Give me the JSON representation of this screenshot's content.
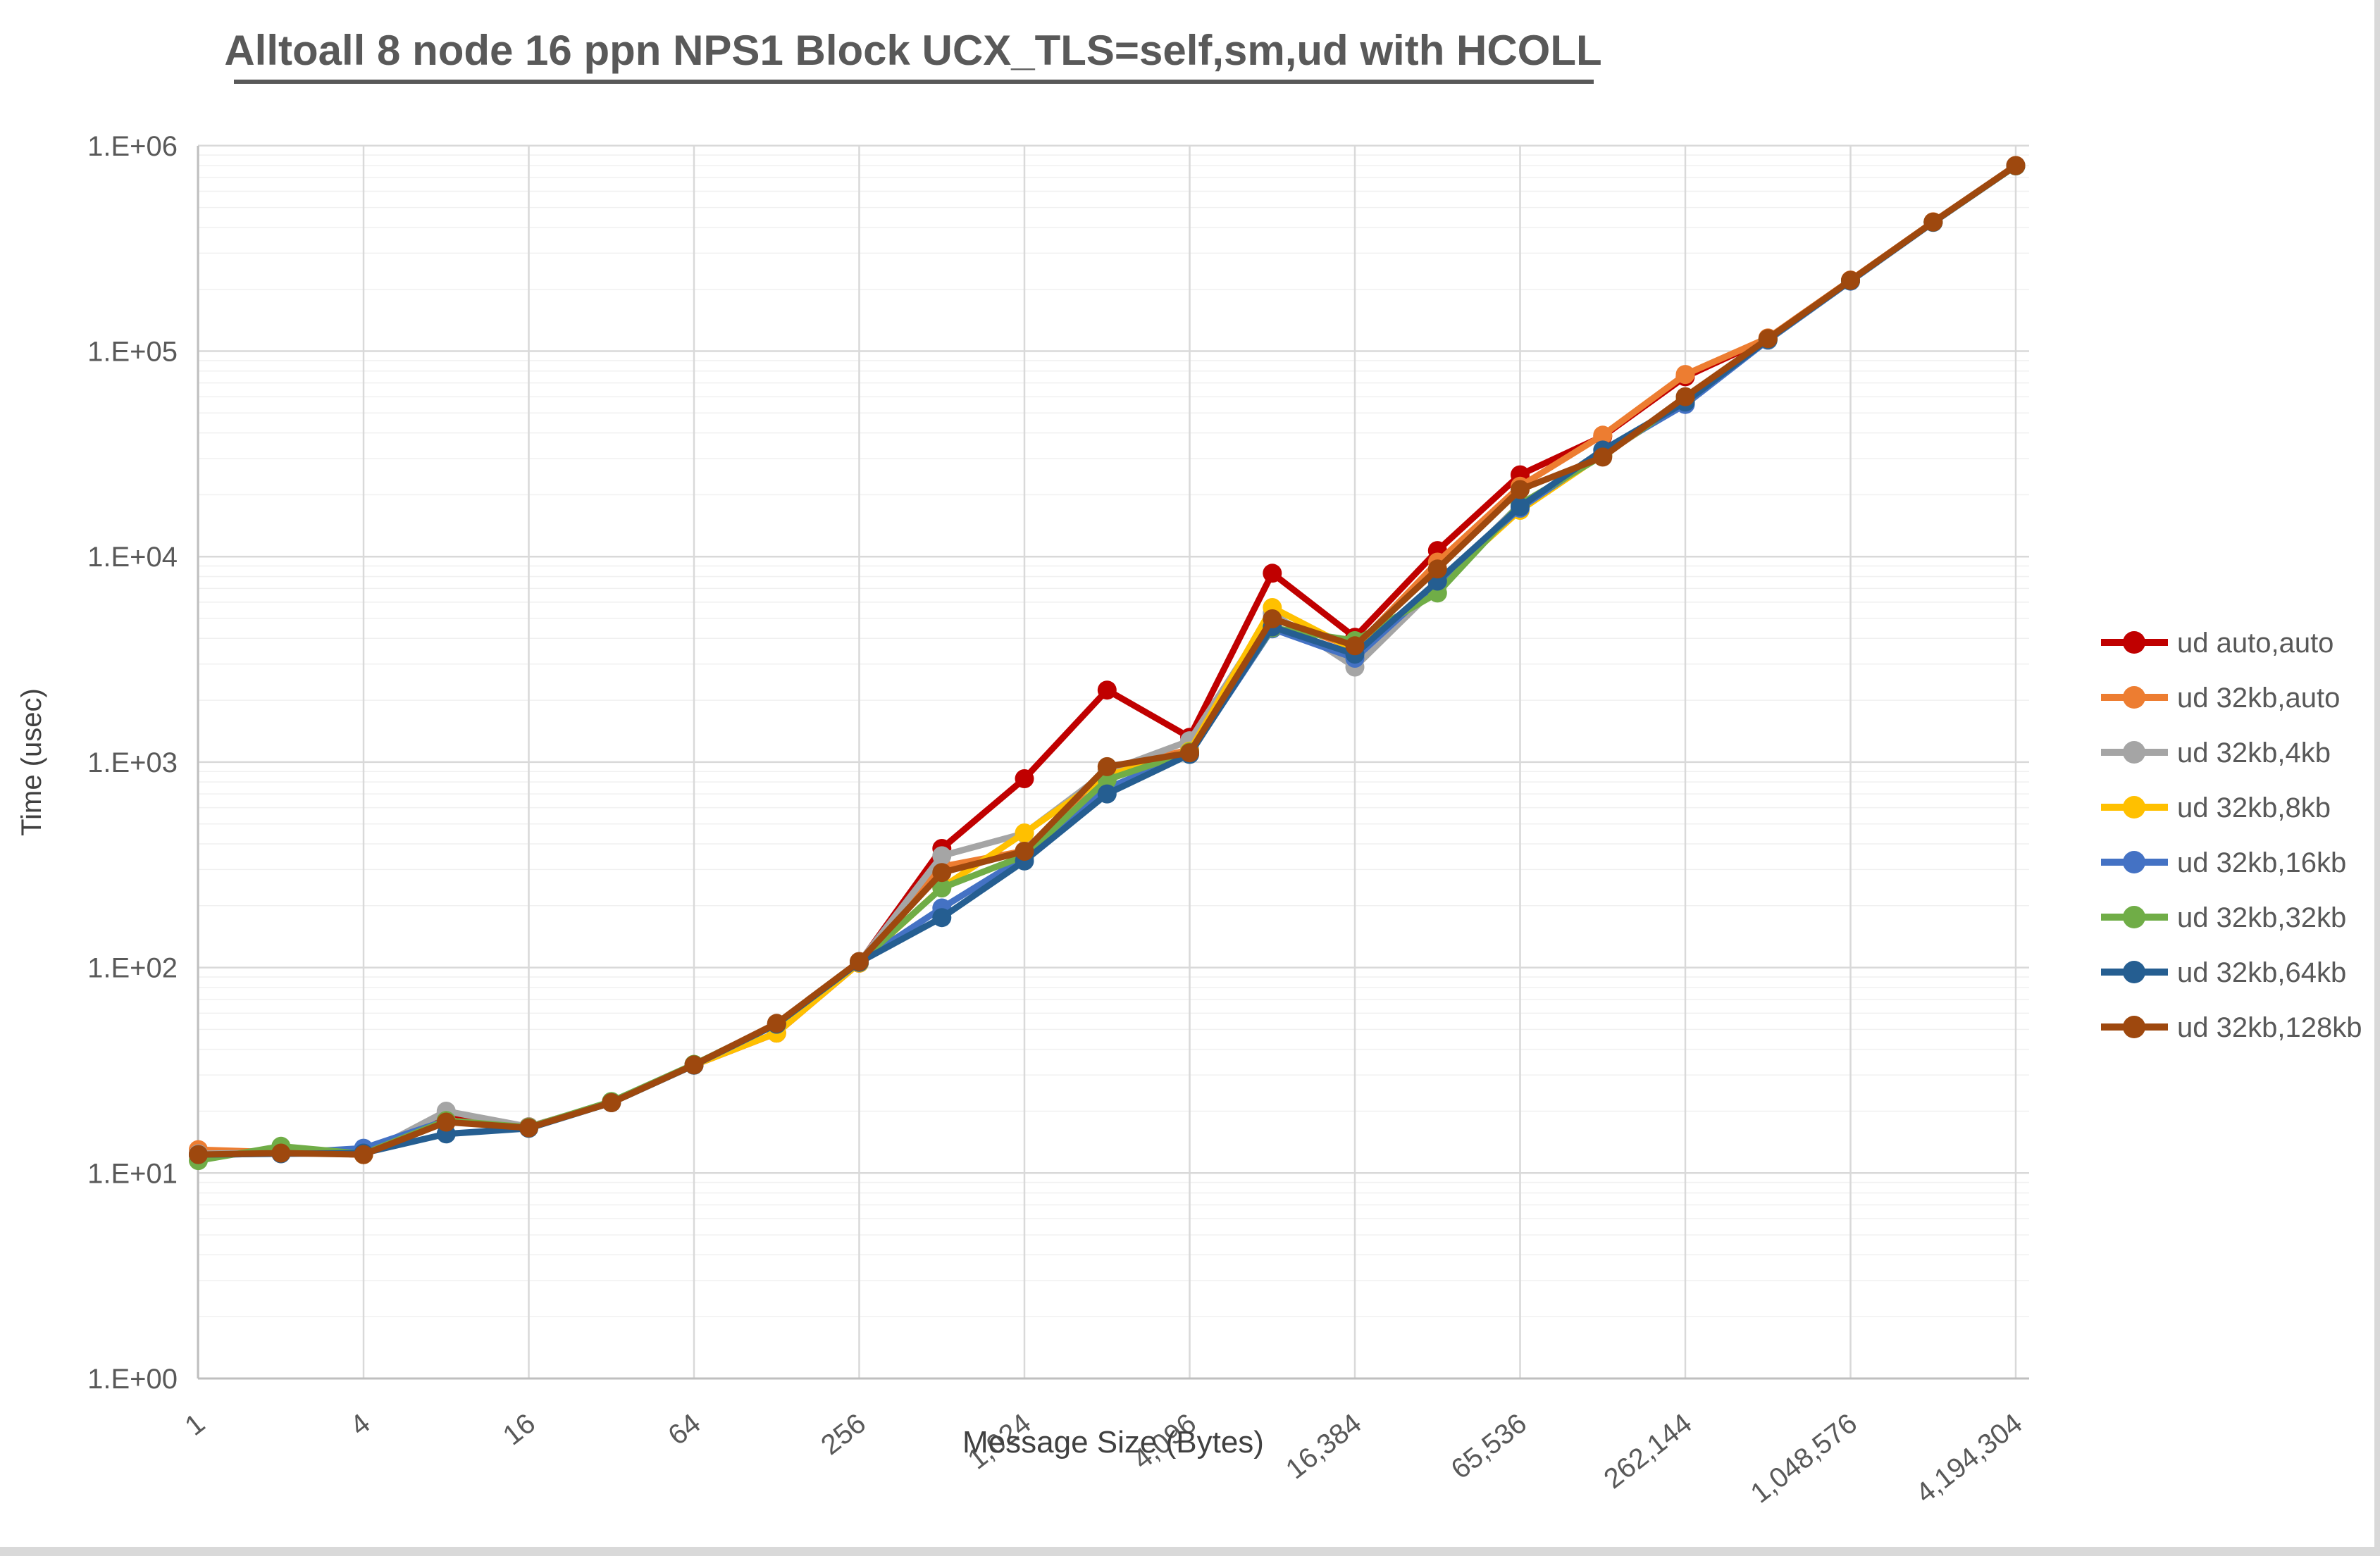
{
  "window": {
    "edge_color": "#D9D9D9",
    "background": "#FFFFFF"
  },
  "title": {
    "text": "Alltoall 8 node 16 ppn NPS1 Block UCX_TLS=self,sm,ud with HCOLL",
    "color": "#595959"
  },
  "axes": {
    "y_title": "Time (usec)",
    "x_title": "Message Size (Bytes)",
    "tick_color": "#595959"
  },
  "chart_data": {
    "type": "line",
    "x_scale": "log2",
    "y_scale": "log10",
    "title": "Alltoall 8 node 16 ppn NPS1 Block UCX_TLS=self,sm,ud with HCOLL",
    "xlabel": "Message Size (Bytes)",
    "ylabel": "Time (usec)",
    "ylim": [
      1,
      1000000
    ],
    "xlim": [
      1,
      4194304
    ],
    "grid": {
      "major": "#D9D9D9",
      "minor": "#F0F0F0",
      "axis": "#BFBFBF",
      "on": true
    },
    "legend_position": "right",
    "x": [
      1,
      2,
      4,
      8,
      16,
      32,
      64,
      128,
      256,
      512,
      1024,
      2048,
      4096,
      8192,
      16384,
      32768,
      65536,
      131072,
      262144,
      524288,
      1048576,
      2097152,
      4194304
    ],
    "x_tick_sizes": [
      1,
      4,
      16,
      64,
      256,
      1024,
      4096,
      16384,
      65536,
      262144,
      1048576,
      4194304
    ],
    "x_tick_labels": [
      "1",
      "4",
      "16",
      "64",
      "256",
      "1,024",
      "4,096",
      "16,384",
      "65,536",
      "262,144",
      "1,048,576",
      "4,194,304"
    ],
    "y_tick_labels": [
      "1.E+00",
      "1.E+01",
      "1.E+02",
      "1.E+03",
      "1.E+04",
      "1.E+05",
      "1.E+06"
    ],
    "series": [
      {
        "name": "ud auto,auto",
        "color": "#C00000",
        "values": [
          12.4,
          12.6,
          12.3,
          19.5,
          16.8,
          22,
          33.5,
          48,
          105,
          380,
          830,
          2240,
          1320,
          8300,
          4050,
          10700,
          25000,
          38500,
          75000,
          115000,
          221000,
          425000,
          800000
        ]
      },
      {
        "name": "ud 32kb,auto",
        "color": "#ED7D31",
        "values": [
          13,
          12.6,
          12.3,
          18,
          16.8,
          22,
          33.5,
          53,
          106,
          310,
          370,
          920,
          1150,
          5000,
          3600,
          9400,
          22000,
          39000,
          77000,
          116000,
          222000,
          426000,
          801000
        ]
      },
      {
        "name": "ud 32kb,4kb",
        "color": "#A5A5A5",
        "values": [
          12.4,
          12.6,
          12.3,
          20,
          16.8,
          22,
          33.5,
          53,
          106,
          350,
          450,
          900,
          1270,
          5300,
          2900,
          7200,
          18000,
          31000,
          57000,
          114000,
          220000,
          424000,
          798000
        ]
      },
      {
        "name": "ud 32kb,8kb",
        "color": "#FFC000",
        "values": [
          12.2,
          12.6,
          12.3,
          18,
          16.6,
          22,
          33.5,
          48,
          105,
          245,
          452,
          860,
          1130,
          5650,
          3500,
          7300,
          16800,
          31500,
          56000,
          113000,
          220000,
          424000,
          797000
        ]
      },
      {
        "name": "ud 32kb,16kb",
        "color": "#4472C4",
        "values": [
          12.2,
          12.5,
          13.2,
          18,
          16.6,
          22,
          33.5,
          53,
          106,
          195,
          345,
          745,
          1100,
          4450,
          3200,
          7450,
          17200,
          32000,
          55000,
          113000,
          219000,
          423000,
          797000
        ]
      },
      {
        "name": "ud 32kb,32kb",
        "color": "#70AD47",
        "values": [
          11.5,
          13.5,
          12.4,
          18,
          16.7,
          22.3,
          33.8,
          53,
          106,
          244,
          350,
          820,
          1120,
          4500,
          3900,
          6650,
          18000,
          31000,
          58000,
          114000,
          220000,
          424000,
          798000
        ]
      },
      {
        "name": "ud 32kb,64kb",
        "color": "#255E91",
        "values": [
          12.3,
          12.4,
          12.5,
          15.5,
          16.5,
          22,
          33.5,
          53,
          106,
          175,
          330,
          700,
          1090,
          4550,
          3350,
          7600,
          17500,
          33000,
          56500,
          114000,
          220000,
          424000,
          799000
        ]
      },
      {
        "name": "ud 32kb,128kb",
        "color": "#9E480E",
        "values": [
          12.3,
          12.5,
          12.3,
          17.7,
          16.6,
          22,
          33.6,
          53.5,
          107,
          290,
          368,
          950,
          1110,
          4980,
          3680,
          8700,
          21200,
          30500,
          60000,
          115000,
          221000,
          425000,
          800000
        ]
      }
    ]
  }
}
